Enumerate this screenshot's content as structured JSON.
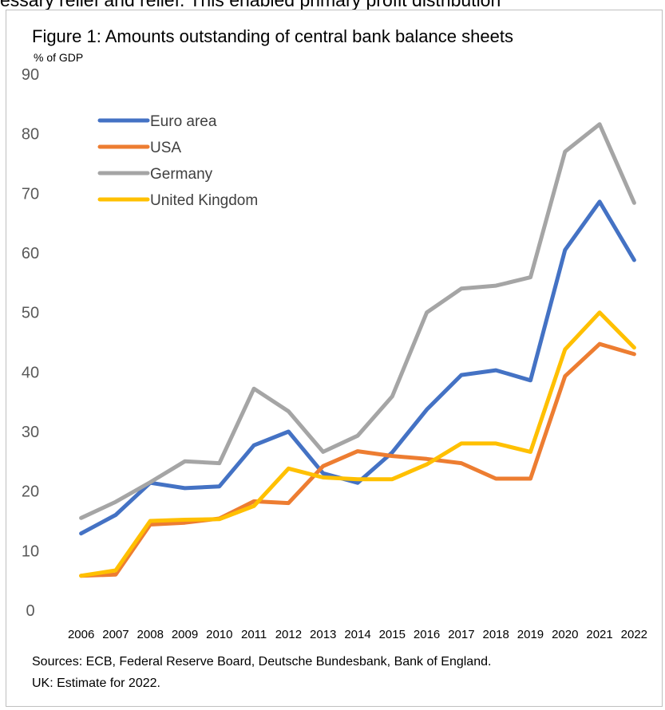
{
  "header_text": "essary relief and relief. This enabled primary profit distribution",
  "chart_data": {
    "type": "line",
    "title": "Figure 1: Amounts outstanding of central bank balance sheets",
    "unit_label": "% of GDP",
    "x": [
      "2006",
      "2007",
      "2008",
      "2009",
      "2010",
      "2011",
      "2012",
      "2013",
      "2014",
      "2015",
      "2016",
      "2017",
      "2018",
      "2019",
      "2020",
      "2021",
      "2022"
    ],
    "ylim": [
      0,
      90
    ],
    "yticks": [
      0,
      10,
      20,
      30,
      40,
      50,
      60,
      70,
      80,
      90
    ],
    "grid": false,
    "legend_position": "top-left",
    "series": [
      {
        "name": "Euro area",
        "color": "#4472c4",
        "values": [
          12.9,
          16.0,
          21.4,
          20.5,
          20.8,
          27.7,
          30.0,
          23.0,
          21.4,
          26.5,
          33.7,
          39.5,
          40.3,
          38.6,
          60.5,
          68.6,
          58.8
        ]
      },
      {
        "name": "USA",
        "color": "#ed7d31",
        "values": [
          5.8,
          6.0,
          14.4,
          14.7,
          15.4,
          18.3,
          18.0,
          24.2,
          26.7,
          25.9,
          25.4,
          24.7,
          22.1,
          22.1,
          39.3,
          44.7,
          43.0
        ]
      },
      {
        "name": "Germany",
        "color": "#a5a5a5",
        "values": [
          15.5,
          18.2,
          21.5,
          25.0,
          24.7,
          37.2,
          33.4,
          26.6,
          29.3,
          35.9,
          50.0,
          54.0,
          54.5,
          55.9,
          77.0,
          81.6,
          68.4
        ]
      },
      {
        "name": "United Kingdom",
        "color": "#ffc000",
        "values": [
          5.8,
          6.7,
          15.0,
          15.2,
          15.3,
          17.5,
          23.8,
          22.3,
          22.0,
          22.0,
          24.5,
          28.0,
          28.0,
          26.6,
          43.8,
          50.0,
          44.1
        ]
      }
    ],
    "notes": [
      "Sources: ECB, Federal Reserve Board, Deutsche Bundesbank, Bank of England.",
      "UK: Estimate for 2022."
    ]
  }
}
